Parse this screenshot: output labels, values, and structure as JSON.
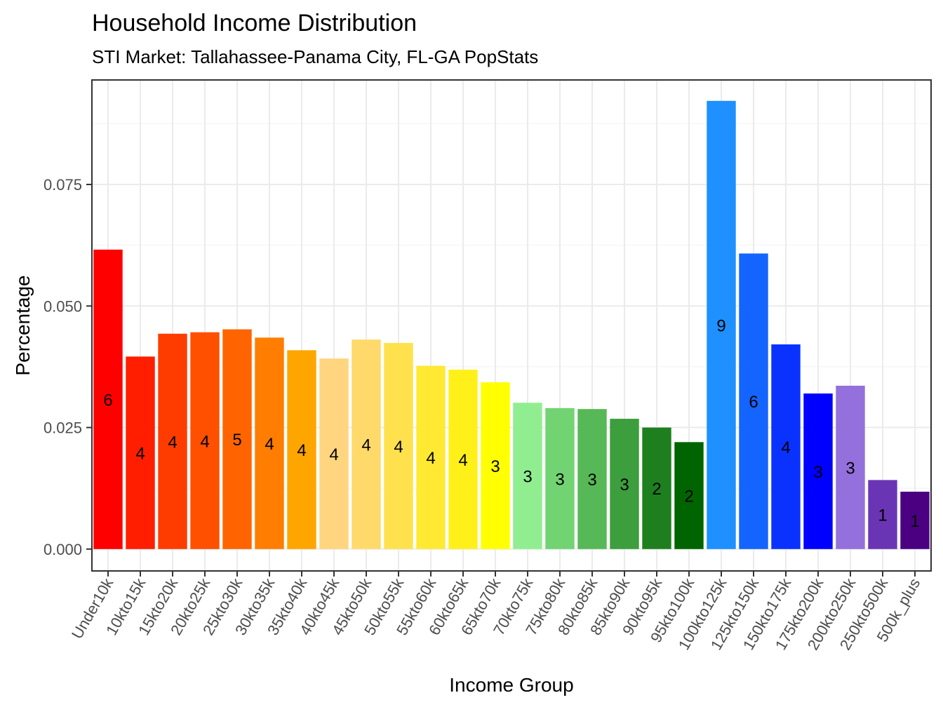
{
  "chart_data": {
    "type": "bar",
    "title": "Household Income Distribution",
    "subtitle": "STI Market: Tallahassee-Panama City, FL-GA PopStats",
    "xlabel": "Income Group",
    "ylabel": "Percentage",
    "ylim": [
      -0.0045,
      0.0965
    ],
    "yticks": [
      0.0,
      0.025,
      0.05,
      0.075
    ],
    "ytick_labels": [
      "0.000",
      "0.025",
      "0.050",
      "0.075"
    ],
    "grid": true,
    "categories": [
      "Under10k",
      "10kto15k",
      "15kto20k",
      "20kto25k",
      "25kto30k",
      "30kto35k",
      "35kto40k",
      "40kto45k",
      "45kto50k",
      "50kto55k",
      "55kto60k",
      "60kto65k",
      "65kto70k",
      "70kto75k",
      "75kto80k",
      "80kto85k",
      "85kto90k",
      "90kto95k",
      "95kto100k",
      "100kto125k",
      "125kto150k",
      "150kto175k",
      "175kto200k",
      "200kto250k",
      "250kto500k",
      "500k_plus"
    ],
    "values": [
      0.0616,
      0.0396,
      0.0443,
      0.0446,
      0.0452,
      0.0435,
      0.0409,
      0.0392,
      0.0431,
      0.0424,
      0.0377,
      0.0369,
      0.0343,
      0.0301,
      0.029,
      0.0288,
      0.0268,
      0.025,
      0.022,
      0.0922,
      0.0608,
      0.0421,
      0.032,
      0.0336,
      0.0142,
      0.0118
    ],
    "labels": [
      "6",
      "4",
      "4",
      "4",
      "5",
      "4",
      "4",
      "4",
      "4",
      "4",
      "4",
      "4",
      "3",
      "3",
      "3",
      "3",
      "3",
      "2",
      "2",
      "9",
      "6",
      "4",
      "3",
      "3",
      "1",
      "1"
    ],
    "colors": [
      "#FF0000",
      "#FF1E00",
      "#FF3C00",
      "#FF5000",
      "#FF6400",
      "#FF7D00",
      "#FFA500",
      "#FFD580",
      "#FFDA6B",
      "#FFE14D",
      "#FFE933",
      "#FFF01A",
      "#FFFF00",
      "#90EE90",
      "#72D372",
      "#57B857",
      "#3C9E3C",
      "#1E7F1E",
      "#006400",
      "#1E90FF",
      "#1464FF",
      "#0A32FF",
      "#0000FF",
      "#9370DB",
      "#6A35B5",
      "#4B0082"
    ]
  }
}
